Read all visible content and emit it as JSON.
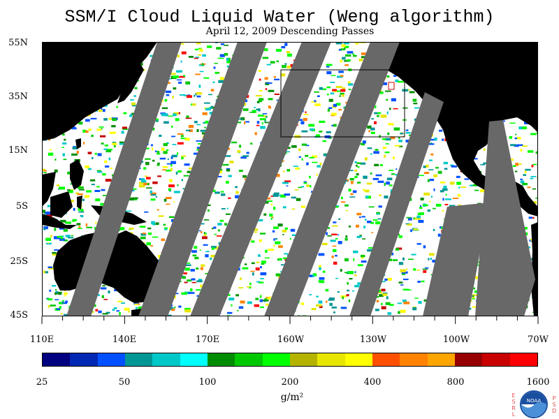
{
  "title": "SSM/I Cloud Liquid Water (Weng algorithm)",
  "subtitle": "April 12, 2009  Descending Passes",
  "map": {
    "lat_labels": [
      "55N",
      "35N",
      "15N",
      "5S",
      "25S",
      "45S"
    ],
    "lon_labels": [
      "110E",
      "140E",
      "170E",
      "160W",
      "130W",
      "100W",
      "70W"
    ]
  },
  "colorbar": {
    "colors": [
      "#000080",
      "#0028b4",
      "#0050ff",
      "#009696",
      "#00c8c8",
      "#00ffff",
      "#008c00",
      "#00c800",
      "#00ff00",
      "#b4b400",
      "#e6e600",
      "#ffff00",
      "#ff5000",
      "#ff8200",
      "#ffa500",
      "#960000",
      "#c80000",
      "#ff0000"
    ],
    "tick_labels": [
      "25",
      "50",
      "100",
      "200",
      "400",
      "800",
      "1600"
    ],
    "units": "g/m²"
  },
  "logo": {
    "left_letters": "ESRL",
    "right_letters": "PSD",
    "center": "NOAA"
  },
  "colors": {
    "land": "#000000",
    "no_data": "#686868",
    "background": "#ffffff"
  }
}
